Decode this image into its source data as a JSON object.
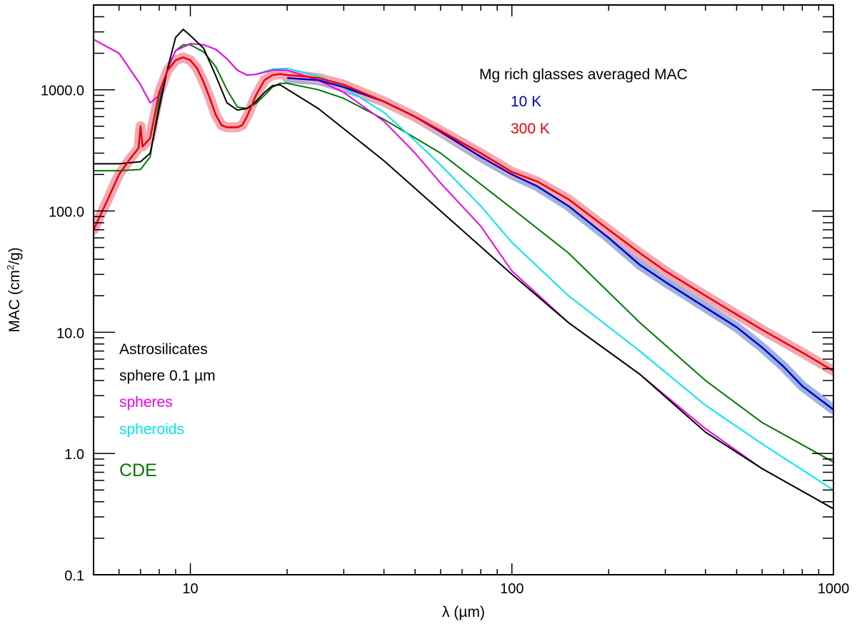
{
  "chart_data": {
    "type": "line",
    "xlabel": "λ (µm)",
    "ylabel_main": "MAC (cm",
    "ylabel_sup": "2",
    "ylabel_tail": "/g)",
    "xscale": "log",
    "yscale": "log",
    "xlim": [
      5,
      1000
    ],
    "ylim": [
      0.1,
      5000
    ],
    "x_tick_labels": [
      {
        "value": 10,
        "label": "10"
      },
      {
        "value": 100,
        "label": "100"
      },
      {
        "value": 1000,
        "label": "1000"
      }
    ],
    "y_tick_labels": [
      {
        "value": 0.1,
        "label": "0.1"
      },
      {
        "value": 1,
        "label": "1.0"
      },
      {
        "value": 10,
        "label": "10.0"
      },
      {
        "value": 100,
        "label": "100.0"
      },
      {
        "value": 1000,
        "label": "1000.0"
      }
    ],
    "legend_main": {
      "title": "Mg rich glasses averaged MAC",
      "entries": [
        {
          "label": "10 K",
          "color": "#0000cc"
        },
        {
          "label": "300 K",
          "color": "#ee0000"
        }
      ]
    },
    "legend_astro": {
      "title": "Astrosilicates",
      "entries": [
        {
          "label": "sphere 0.1 µm",
          "color": "#000000"
        },
        {
          "label": "spheres",
          "color": "#ee00ee"
        },
        {
          "label": "spheroids",
          "color": "#00e5ee"
        },
        {
          "label": "CDE",
          "color": "#007700"
        }
      ]
    },
    "series": [
      {
        "name": "10 K",
        "color": "#0000cc",
        "band_color": "#9fb3dd",
        "band": true,
        "x": [
          20,
          25,
          30,
          40,
          50,
          60,
          80,
          100,
          120,
          150,
          200,
          250,
          300,
          400,
          500,
          600,
          700,
          800,
          1000
        ],
        "y": [
          1250,
          1200,
          1050,
          800,
          600,
          450,
          280,
          200,
          160,
          110,
          60,
          36,
          26,
          16,
          11,
          7.5,
          5.2,
          3.6,
          2.3
        ]
      },
      {
        "name": "300 K",
        "color": "#ee0000",
        "band_color": "#f4a8b4",
        "band": true,
        "x": [
          5,
          5.5,
          6,
          6.5,
          6.9,
          7,
          7.1,
          7.5,
          8,
          8.5,
          9,
          9.5,
          10,
          10.5,
          11,
          11.5,
          12,
          12.5,
          13,
          13.5,
          14,
          14.5,
          15,
          16,
          17,
          18,
          19,
          20,
          22,
          25,
          30,
          40,
          50,
          60,
          80,
          100,
          120,
          150,
          200,
          250,
          300,
          400,
          500,
          600,
          800,
          1000
        ],
        "y": [
          70,
          120,
          200,
          270,
          330,
          500,
          340,
          400,
          950,
          1450,
          1750,
          1850,
          1750,
          1500,
          1150,
          850,
          620,
          510,
          490,
          490,
          490,
          510,
          600,
          900,
          1200,
          1320,
          1350,
          1320,
          1300,
          1250,
          1100,
          800,
          600,
          460,
          300,
          210,
          175,
          125,
          70,
          45,
          32,
          20,
          14,
          10.5,
          6.8,
          4.8
        ]
      },
      {
        "name": "sphere 0.1 µm",
        "color": "#000000",
        "band": false,
        "x": [
          5,
          6,
          7,
          7.5,
          8,
          8.5,
          9,
          9.5,
          10,
          11,
          12,
          13,
          14,
          15,
          16,
          17,
          18,
          19,
          25,
          40,
          60,
          100,
          150,
          250,
          400,
          600,
          1000
        ],
        "y": [
          245,
          245,
          255,
          300,
          700,
          1500,
          2700,
          3150,
          2800,
          2200,
          1300,
          780,
          680,
          700,
          800,
          950,
          1080,
          1100,
          700,
          260,
          100,
          30,
          12,
          4.5,
          1.5,
          0.75,
          0.35
        ]
      },
      {
        "name": "spheres",
        "color": "#ee00ee",
        "band": false,
        "x": [
          5,
          6,
          7,
          7.5,
          8,
          8.5,
          9,
          10,
          11,
          12,
          13,
          14,
          15,
          16,
          18,
          20,
          25,
          30,
          40,
          50,
          60,
          80,
          100,
          150,
          250,
          400,
          600,
          1000
        ],
        "y": [
          2600,
          2000,
          1100,
          780,
          900,
          1500,
          2100,
          2400,
          2350,
          2150,
          1800,
          1450,
          1320,
          1340,
          1450,
          1450,
          1200,
          950,
          550,
          300,
          170,
          75,
          32,
          12,
          4.5,
          1.6,
          0.75,
          0.35
        ]
      },
      {
        "name": "spheroids",
        "color": "#00e5ee",
        "band": false,
        "x": [
          5,
          6,
          7,
          7.5,
          8,
          8.5,
          9,
          10,
          11,
          12,
          13,
          14,
          15,
          16,
          18,
          20,
          25,
          30,
          40,
          50,
          60,
          80,
          100,
          150,
          250,
          400,
          600,
          1000
        ],
        "y": [
          2600,
          2000,
          1100,
          780,
          900,
          1500,
          2100,
          2400,
          2350,
          2150,
          1800,
          1450,
          1320,
          1340,
          1480,
          1500,
          1300,
          1050,
          650,
          380,
          240,
          110,
          55,
          20,
          7,
          2.5,
          1.2,
          0.5
        ]
      },
      {
        "name": "CDE",
        "color": "#007700",
        "band": false,
        "x": [
          5,
          6,
          7,
          7.5,
          8,
          8.5,
          9,
          9.5,
          10,
          11,
          12,
          13,
          14,
          15,
          16,
          17,
          18,
          19,
          20,
          25,
          30,
          40,
          60,
          100,
          150,
          250,
          400,
          600,
          1000
        ],
        "y": [
          215,
          215,
          220,
          280,
          800,
          1500,
          2100,
          2350,
          2350,
          2050,
          1550,
          1000,
          720,
          700,
          770,
          900,
          1050,
          1130,
          1130,
          1000,
          850,
          570,
          300,
          105,
          45,
          12,
          4,
          1.8,
          0.85
        ]
      }
    ]
  }
}
